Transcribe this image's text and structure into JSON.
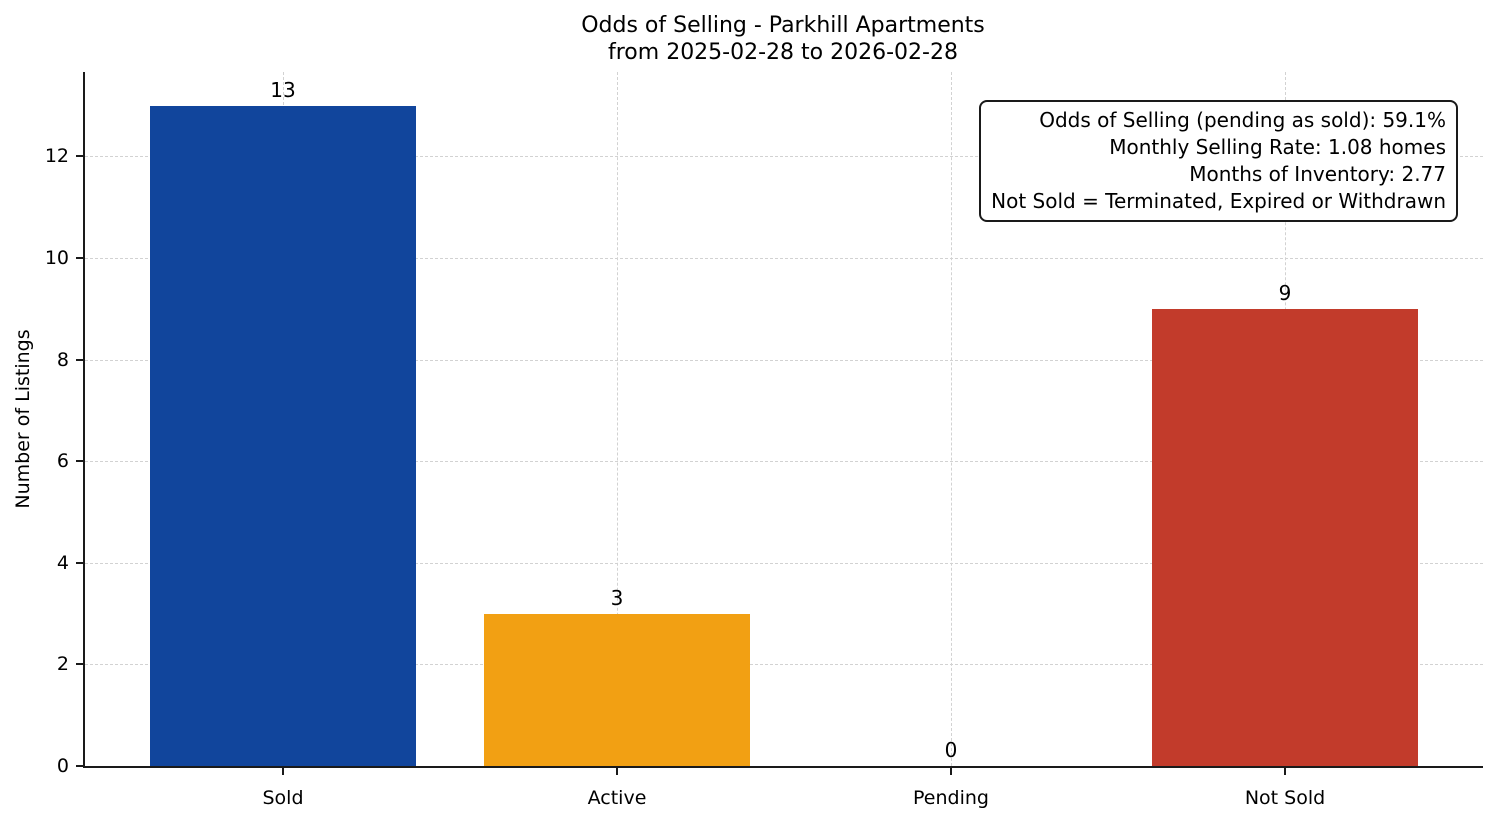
{
  "chart_data": {
    "type": "bar",
    "title": "Odds of Selling - Parkhill Apartments",
    "subtitle": "from 2025-02-28 to 2026-02-28",
    "categories": [
      "Sold",
      "Active",
      "Pending",
      "Not Sold"
    ],
    "values": [
      13,
      3,
      0,
      9
    ],
    "bar_colors": [
      "#11459c",
      "#f2a013",
      null,
      "#c23b2b"
    ],
    "xlabel": "",
    "ylabel": "Number of Listings",
    "ylim": [
      0,
      13.66
    ],
    "yticks": [
      0,
      2,
      4,
      6,
      8,
      10,
      12
    ],
    "grid": "dashed, both axes, light gray, behind bars",
    "legend_position": "none",
    "annotation_lines": [
      "Odds of Selling (pending as sold): 59.1%",
      "Monthly Selling Rate: 1.08 homes",
      "Months of Inventory: 2.77",
      "Not Sold = Terminated, Expired or Withdrawn"
    ]
  },
  "colors": {
    "sold_bar": "#11459c",
    "active_bar": "#f2a013",
    "not_sold_bar": "#c23b2b",
    "grid_line": "#d2d2d2",
    "axis_spine": "#1a1a1a",
    "background": "#ffffff"
  }
}
